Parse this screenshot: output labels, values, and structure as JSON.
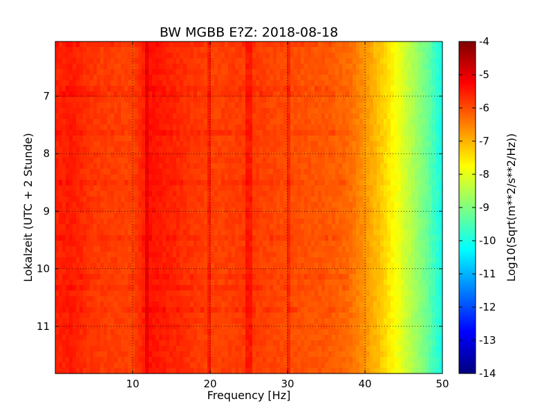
{
  "chart_data": {
    "type": "heatmap",
    "title": "BW MGBB E?Z: 2018-08-18",
    "xlabel": "Frequency [Hz]",
    "ylabel": "Lokalzeit (UTC + 2 Stunde)",
    "xlim": [
      0,
      50
    ],
    "ylim": [
      6.05,
      11.82
    ],
    "y_inverted": true,
    "x_ticks": [
      10,
      20,
      30,
      40,
      50
    ],
    "y_ticks": [
      7,
      8,
      9,
      10,
      11
    ],
    "grid": true,
    "colorbar": {
      "label": "Log10(Sqrt(m**2/s**2/Hz))",
      "range": [
        -14,
        -4
      ],
      "ticks": [
        -4,
        -5,
        -6,
        -7,
        -8,
        -9,
        -10,
        -11,
        -12,
        -13,
        -14
      ],
      "colormap": "jet"
    },
    "spectrum_profile": {
      "frequency_hz": [
        0,
        2,
        5,
        10,
        12,
        20,
        25,
        30,
        35,
        38,
        40,
        42,
        44,
        46,
        48,
        50
      ],
      "log10_amplitude": [
        -5.6,
        -5.5,
        -5.8,
        -5.9,
        -5.4,
        -5.9,
        -5.8,
        -6.0,
        -6.1,
        -6.3,
        -6.7,
        -7.2,
        -7.8,
        -8.5,
        -9.2,
        -10.1
      ]
    },
    "spectral_lines_hz": [
      11.8,
      20.0,
      25.0,
      30.2
    ]
  }
}
